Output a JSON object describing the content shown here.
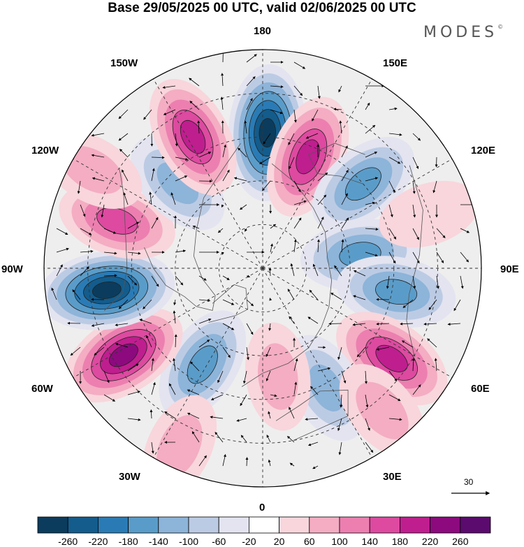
{
  "title": "Base 29/05/2025 00 UTC, valid 02/06/2025 00 UTC",
  "brand": "MODES",
  "brand_mark": "©",
  "longitude_labels": [
    "180",
    "150E",
    "120E",
    "90E",
    "60E",
    "30E",
    "0",
    "30W",
    "60W",
    "90W",
    "120W",
    "150W"
  ],
  "reference_vector_label": "30",
  "colorbar": {
    "labels": [
      "-260",
      "-220",
      "-180",
      "-140",
      "-100",
      "-60",
      "-20",
      "20",
      "60",
      "100",
      "140",
      "180",
      "220",
      "260"
    ],
    "colors": [
      "#0b3c5d",
      "#135c8c",
      "#2a7bb5",
      "#5a9cc9",
      "#8db4d9",
      "#bccbe4",
      "#e3e4f0",
      "#ffffff",
      "#f8d6dc",
      "#f4adc3",
      "#ec7fb0",
      "#dd4aa0",
      "#bf1e8f",
      "#8c0a7e",
      "#5b0a6e"
    ]
  },
  "colors": {
    "land_outline": "#555555",
    "grid": "#333333",
    "vectors": "#000000"
  },
  "anomalies": [
    {
      "lon": 178,
      "r": 0.62,
      "value": -260
    },
    {
      "lon": 158,
      "r": 0.55,
      "value": 200
    },
    {
      "lon": 130,
      "r": 0.6,
      "value": -140
    },
    {
      "lon": 98,
      "r": 0.45,
      "value": -160
    },
    {
      "lon": 80,
      "r": 0.62,
      "value": -150
    },
    {
      "lon": 55,
      "r": 0.72,
      "value": 180
    },
    {
      "lon": 28,
      "r": 0.62,
      "value": -120
    },
    {
      "lon": 8,
      "r": 0.5,
      "value": 60
    },
    {
      "lon": -32,
      "r": 0.52,
      "value": -160
    },
    {
      "lon": -58,
      "r": 0.75,
      "value": 240
    },
    {
      "lon": -82,
      "r": 0.72,
      "value": -260
    },
    {
      "lon": -108,
      "r": 0.7,
      "value": 160
    },
    {
      "lon": -135,
      "r": 0.55,
      "value": -100
    },
    {
      "lon": -152,
      "r": 0.68,
      "value": 200
    },
    {
      "lon": 108,
      "r": 0.8,
      "value": 40
    },
    {
      "lon": -120,
      "r": 0.9,
      "value": 60
    },
    {
      "lon": 40,
      "r": 0.85,
      "value": 70
    },
    {
      "lon": -25,
      "r": 0.9,
      "value": 80
    }
  ]
}
